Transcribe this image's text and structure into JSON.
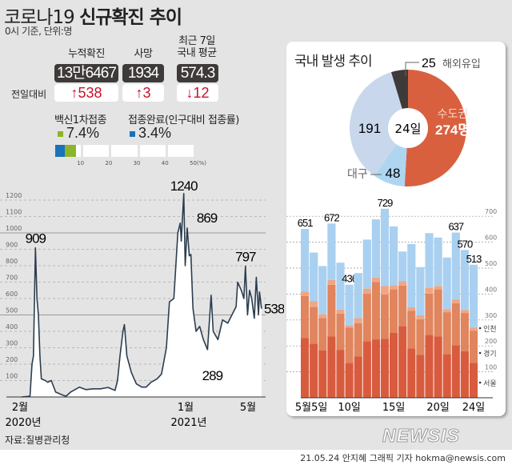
{
  "header": {
    "title_light": "코로나19 ",
    "title_bold": "신규확진 추이",
    "subtitle": "0시 기준, 단위:명"
  },
  "stats": {
    "labels": [
      "누적확진",
      "사망",
      "최근 7일\n국내 평균"
    ],
    "values": [
      "13만6467",
      "1934",
      "574.3"
    ],
    "change_label": "전일대비",
    "changes": [
      {
        "dir": "up",
        "text": "538"
      },
      {
        "dir": "up",
        "text": "3"
      },
      {
        "dir": "down",
        "text": "12"
      }
    ],
    "up_arrow": "↑",
    "down_arrow": "↓"
  },
  "vaccine": {
    "first_label": "백신1차접종",
    "first_pct": "7.4%",
    "first_value": 7.4,
    "first_color": "#8db52a",
    "full_label": "접종완료(인구대비 접종률)",
    "full_pct": "3.4%",
    "full_value": 3.4,
    "full_color": "#1a72b8",
    "ticks": [
      "10",
      "20",
      "30",
      "40",
      "50(%)"
    ]
  },
  "chart_data": [
    {
      "type": "area",
      "yticks": [
        "100",
        "200",
        "300",
        "400",
        "500",
        "600",
        "700",
        "800",
        "900",
        "1000",
        "1100",
        "1200"
      ],
      "ylim": [
        0,
        1250
      ],
      "xticks": [
        {
          "label": "2월",
          "year": "2020년",
          "date": "2020-02-01"
        },
        {
          "label": "1월",
          "year": "2021년",
          "date": "2021-01-01"
        },
        {
          "label": "5월",
          "year": "",
          "date": "2021-05-01"
        }
      ],
      "annotations": [
        {
          "text": "909",
          "date": "2020-02-29"
        },
        {
          "text": "1240",
          "date": "2020-12-25"
        },
        {
          "text": "869",
          "date": "2021-01-08"
        },
        {
          "text": "289",
          "date": "2021-02-09"
        },
        {
          "text": "797",
          "date": "2021-04-23"
        },
        {
          "text": "538",
          "date": "2021-05-24"
        }
      ],
      "series": [
        [
          "2020-02-01",
          0
        ],
        [
          "2020-02-18",
          5
        ],
        [
          "2020-02-22",
          200
        ],
        [
          "2020-02-25",
          250
        ],
        [
          "2020-02-29",
          909
        ],
        [
          "2020-03-03",
          600
        ],
        [
          "2020-03-06",
          500
        ],
        [
          "2020-03-09",
          250
        ],
        [
          "2020-03-12",
          110
        ],
        [
          "2020-03-20",
          100
        ],
        [
          "2020-03-25",
          90
        ],
        [
          "2020-04-01",
          100
        ],
        [
          "2020-04-10",
          30
        ],
        [
          "2020-04-25",
          10
        ],
        [
          "2020-05-01",
          5
        ],
        [
          "2020-05-10",
          30
        ],
        [
          "2020-05-28",
          60
        ],
        [
          "2020-06-10",
          45
        ],
        [
          "2020-06-25",
          50
        ],
        [
          "2020-07-10",
          50
        ],
        [
          "2020-07-25",
          58
        ],
        [
          "2020-08-08",
          40
        ],
        [
          "2020-08-13",
          100
        ],
        [
          "2020-08-18",
          250
        ],
        [
          "2020-08-24",
          400
        ],
        [
          "2020-08-27",
          441
        ],
        [
          "2020-09-01",
          250
        ],
        [
          "2020-09-10",
          150
        ],
        [
          "2020-09-20",
          80
        ],
        [
          "2020-10-01",
          60
        ],
        [
          "2020-10-10",
          60
        ],
        [
          "2020-10-20",
          90
        ],
        [
          "2020-11-01",
          110
        ],
        [
          "2020-11-10",
          140
        ],
        [
          "2020-11-20",
          300
        ],
        [
          "2020-11-26",
          580
        ],
        [
          "2020-12-05",
          600
        ],
        [
          "2020-12-13",
          1000
        ],
        [
          "2020-12-18",
          1060
        ],
        [
          "2020-12-20",
          950
        ],
        [
          "2020-12-25",
          1240
        ],
        [
          "2020-12-28",
          800
        ],
        [
          "2021-01-01",
          1030
        ],
        [
          "2021-01-05",
          860
        ],
        [
          "2021-01-08",
          869
        ],
        [
          "2021-01-12",
          540
        ],
        [
          "2021-01-18",
          400
        ],
        [
          "2021-01-25",
          430
        ],
        [
          "2021-02-01",
          350
        ],
        [
          "2021-02-09",
          289
        ],
        [
          "2021-02-16",
          620
        ],
        [
          "2021-02-20",
          400
        ],
        [
          "2021-03-01",
          350
        ],
        [
          "2021-03-10",
          470
        ],
        [
          "2021-03-20",
          450
        ],
        [
          "2021-03-28",
          500
        ],
        [
          "2021-04-05",
          550
        ],
        [
          "2021-04-08",
          700
        ],
        [
          "2021-04-15",
          650
        ],
        [
          "2021-04-20",
          600
        ],
        [
          "2021-04-23",
          797
        ],
        [
          "2021-04-27",
          500
        ],
        [
          "2021-05-01",
          650
        ],
        [
          "2021-05-05",
          600
        ],
        [
          "2021-05-10",
          480
        ],
        [
          "2021-05-14",
          730
        ],
        [
          "2021-05-18",
          500
        ],
        [
          "2021-05-20",
          640
        ],
        [
          "2021-05-24",
          538
        ]
      ]
    },
    {
      "type": "pie",
      "title": "국내 발생 추이",
      "center": "24일",
      "slices": [
        {
          "name": "수도권",
          "value": 274,
          "label": "274명",
          "color": "#d9603f"
        },
        {
          "name": "대구",
          "value": 48,
          "label": "48",
          "color": "#aed6f1"
        },
        {
          "name": "",
          "value": 191,
          "label": "191",
          "color": "#c9d7ec"
        },
        {
          "name": "해외유입",
          "value": 25,
          "label": "25",
          "color": "#3e3a39"
        }
      ]
    },
    {
      "type": "bar",
      "stacked": true,
      "categories": [
        "5",
        "6",
        "7",
        "8",
        "9",
        "10",
        "11",
        "12",
        "13",
        "14",
        "15",
        "16",
        "17",
        "18",
        "19",
        "20",
        "21",
        "22",
        "23",
        "24"
      ],
      "xticks": [
        {
          "i": 0,
          "label": "5월5일"
        },
        {
          "i": 5,
          "label": "10일"
        },
        {
          "i": 10,
          "label": "15일"
        },
        {
          "i": 15,
          "label": "20일"
        },
        {
          "i": 19,
          "label": "24일"
        }
      ],
      "yticks": [
        "100",
        "200",
        "300",
        "400",
        "500",
        "600",
        "700"
      ],
      "ylim": [
        0,
        750
      ],
      "series": [
        {
          "name": "서울",
          "color": "#d95b3e",
          "values": [
            231,
            209,
            182,
            236,
            185,
            135,
            160,
            218,
            225,
            227,
            250,
            276,
            190,
            165,
            242,
            236,
            168,
            203,
            180,
            135
          ]
        },
        {
          "name": "경기",
          "color": "#e0855e",
          "values": [
            162,
            141,
            125,
            200,
            140,
            135,
            128,
            183,
            222,
            171,
            168,
            157,
            146,
            138,
            160,
            182,
            162,
            162,
            147,
            124
          ]
        },
        {
          "name": "인천",
          "color": "#f0a684",
          "values": [
            17,
            22,
            15,
            18,
            15,
            10,
            19,
            20,
            17,
            33,
            14,
            16,
            13,
            15,
            23,
            13,
            12,
            15,
            12,
            11
          ]
        },
        {
          "name": "",
          "color": "#a9d0f0",
          "values": [
            241,
            188,
            186,
            218,
            181,
            156,
            174,
            189,
            224,
            298,
            229,
            115,
            244,
            186,
            210,
            187,
            199,
            257,
            231,
            243
          ]
        }
      ],
      "totals": [
        651,
        560,
        508,
        672,
        521,
        436,
        481,
        610,
        688,
        729,
        661,
        564,
        593,
        504,
        635,
        618,
        541,
        637,
        570,
        513
      ],
      "labeled": {
        "0": "651",
        "3": "672",
        "5": "436",
        "9": "729",
        "17": "637",
        "18": "570",
        "19": "513"
      }
    }
  ],
  "source": "자료:질병관리청",
  "credit": "21.05.24 안지혜 그래픽 기자 hokma@newsis.com",
  "logo": "NEWSIS"
}
